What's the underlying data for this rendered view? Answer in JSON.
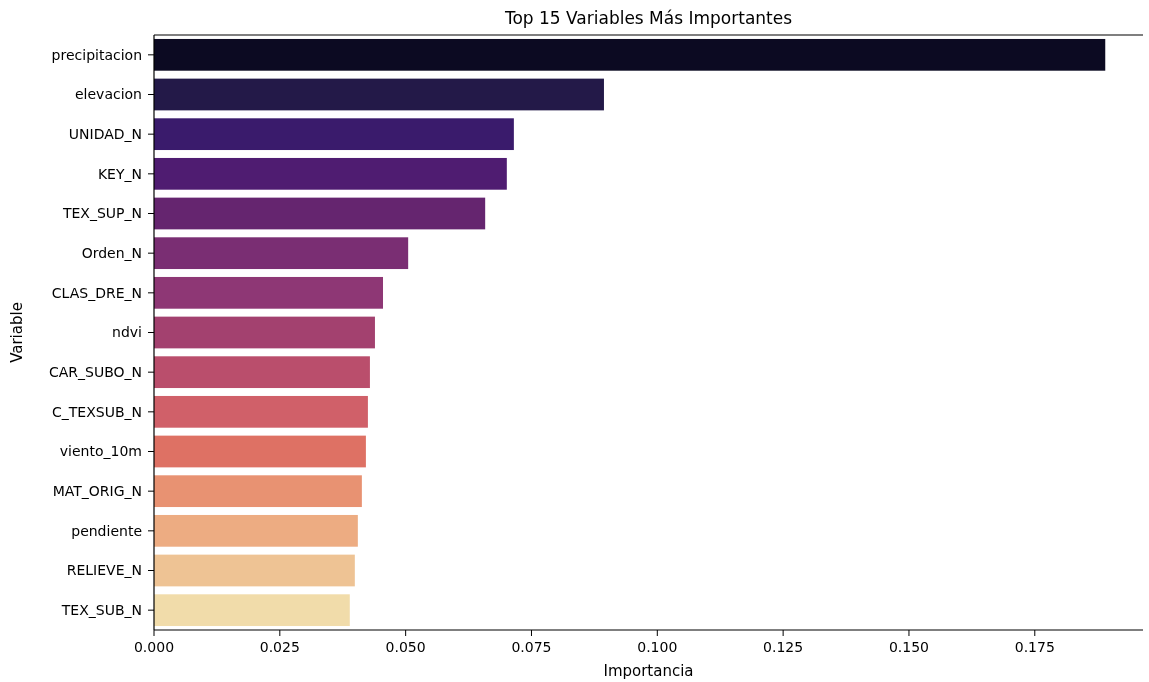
{
  "chart_data": {
    "type": "bar",
    "orientation": "horizontal",
    "title": "Top 15 Variables Más Importantes",
    "xlabel": "Importancia",
    "ylabel": "Variable",
    "categories": [
      "precipitacion",
      "elevacion",
      "UNIDAD_N",
      "KEY_N",
      "TEX_SUP_N",
      "Orden_N",
      "CLAS_DRE_N",
      "ndvi",
      "CAR_SUBO_N",
      "C_TEXSUB_N",
      "viento_10m",
      "MAT_ORIG_N",
      "pendiente",
      "RELIEVE_N",
      "TEX_SUB_N"
    ],
    "values": [
      0.189,
      0.0894,
      0.0715,
      0.0701,
      0.0658,
      0.0505,
      0.0455,
      0.0439,
      0.0429,
      0.0425,
      0.0421,
      0.0413,
      0.0405,
      0.0399,
      0.0389
    ],
    "colors": [
      "#0c0a22",
      "#231948",
      "#3a1b6c",
      "#4f1c71",
      "#65256f",
      "#7a2e73",
      "#8e3775",
      "#a3416f",
      "#ba4e6c",
      "#d06069",
      "#de7164",
      "#e89272",
      "#edac82",
      "#eec394",
      "#f1dcaa"
    ],
    "xlim": [
      0,
      0.1965
    ],
    "xticks": [
      {
        "value": 0,
        "label": "0.000"
      },
      {
        "value": 0.025,
        "label": "0.025"
      },
      {
        "value": 0.05,
        "label": "0.050"
      },
      {
        "value": 0.075,
        "label": "0.075"
      },
      {
        "value": 0.1,
        "label": "0.100"
      },
      {
        "value": 0.125,
        "label": "0.125"
      },
      {
        "value": 0.15,
        "label": "0.150"
      },
      {
        "value": 0.175,
        "label": "0.175"
      }
    ],
    "grid": false
  }
}
